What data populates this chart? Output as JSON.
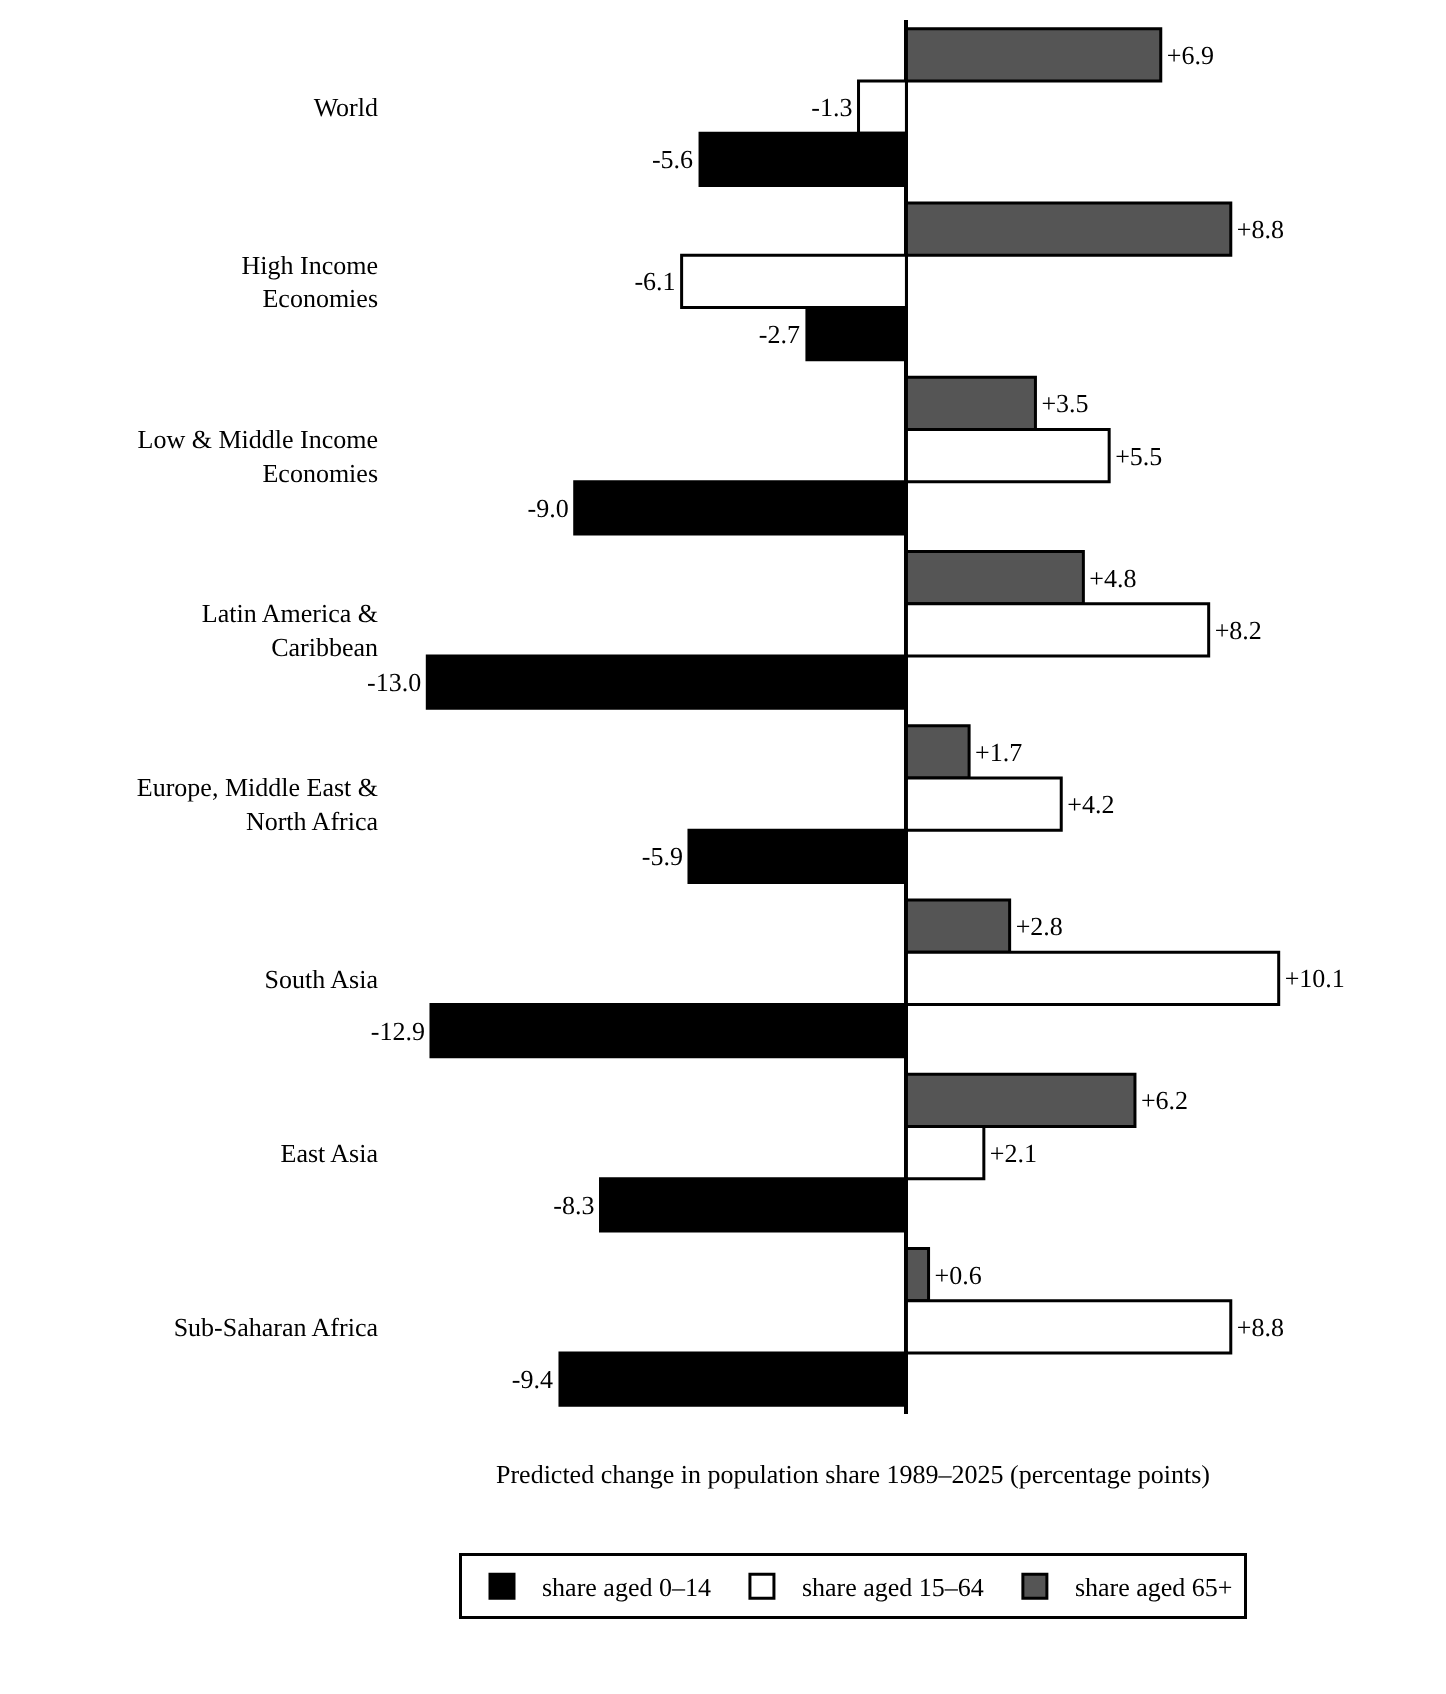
{
  "chart_data": {
    "type": "bar",
    "orientation": "horizontal",
    "xlabel": "Predicted change in population share 1989–2025 (percentage points)",
    "categories": [
      "World",
      "High Income\nEconomies",
      "Low & Middle Income\nEconomies",
      "Latin America &\nCaribbean",
      "Europe, Middle East &\nNorth Africa",
      "South Asia",
      "East Asia",
      "Sub-Saharan Africa"
    ],
    "series": [
      {
        "name": "share aged 0–14",
        "color": "#000000",
        "values": [
          -5.6,
          -2.7,
          -9.0,
          -13.0,
          -5.9,
          -12.9,
          -8.3,
          -9.4
        ],
        "value_labels": [
          "-5.6",
          "-2.7",
          "-9.0",
          "-13.0",
          "-5.9",
          "-12.9",
          "-8.3",
          "-9.4"
        ]
      },
      {
        "name": "share aged 15–64",
        "color": "#ffffff",
        "values": [
          -1.3,
          -6.1,
          5.5,
          8.2,
          4.2,
          10.1,
          2.1,
          8.8
        ],
        "value_labels": [
          "-1.3",
          "-6.1",
          "+5.5",
          "+8.2",
          "+4.2",
          "+10.1",
          "+2.1",
          "+8.8"
        ]
      },
      {
        "name": "share aged 65+",
        "color": "#555555",
        "values": [
          6.9,
          8.8,
          3.5,
          4.8,
          1.7,
          2.8,
          6.2,
          0.6
        ],
        "value_labels": [
          "+6.9",
          "+8.8",
          "+3.5",
          "+4.8",
          "+1.7",
          "+2.8",
          "+6.2",
          "+0.6"
        ]
      }
    ],
    "legend": "bottom",
    "tick_labels": "y"
  }
}
